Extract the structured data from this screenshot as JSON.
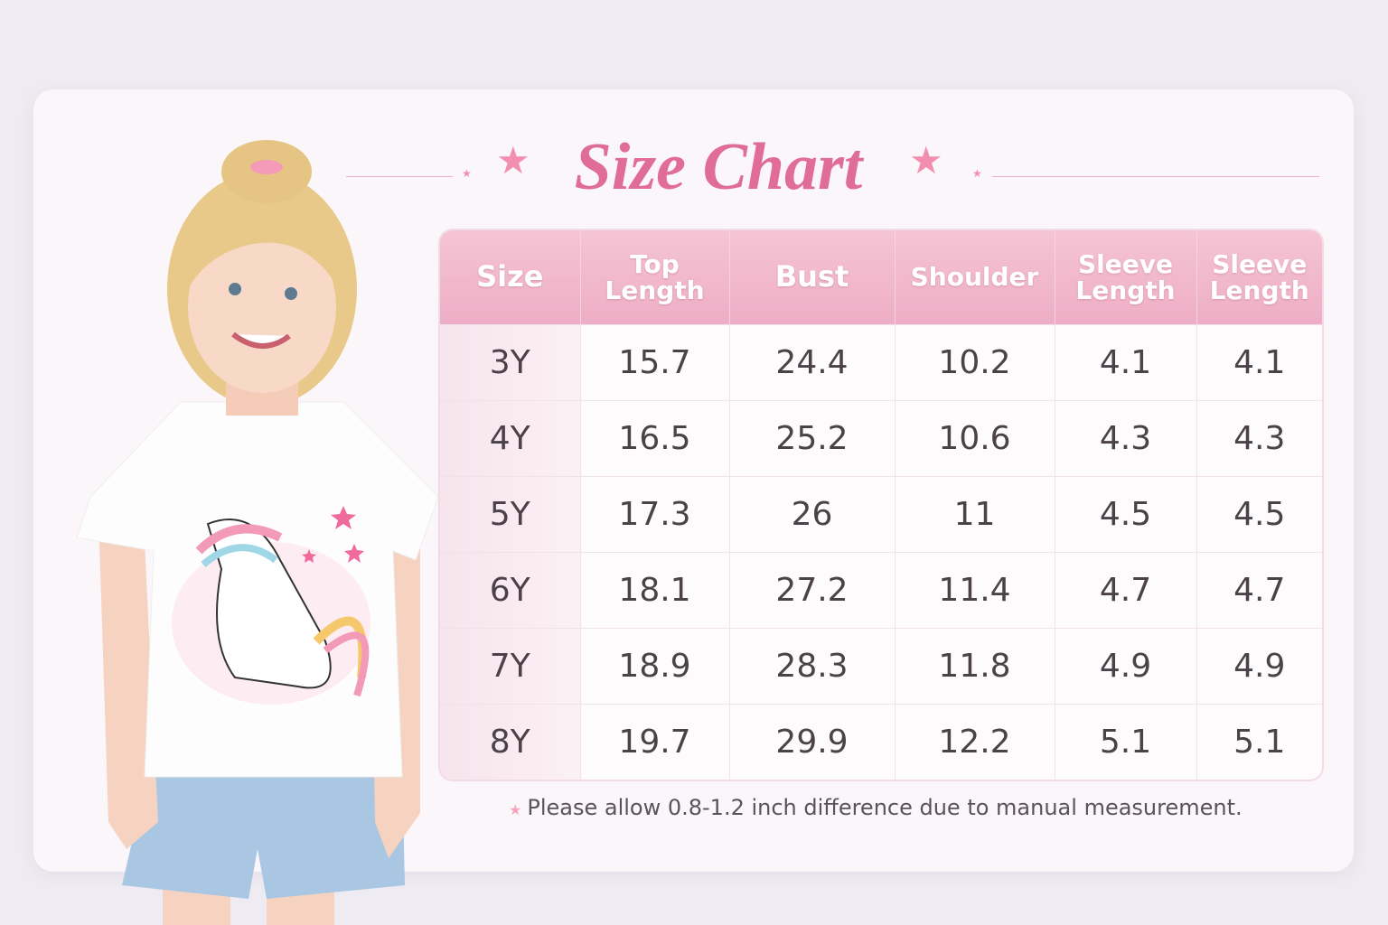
{
  "title": "Size Chart",
  "colors": {
    "accent": "#e06d98",
    "header_bg": "#f0b5c9",
    "card_bg": "#fbf6f9"
  },
  "table": {
    "headers": [
      "Size",
      "Top Length",
      "Bust",
      "Shoulder",
      "Sleeve Length",
      "Sleeve Length"
    ],
    "rows": [
      [
        "3Y",
        "15.7",
        "24.4",
        "10.2",
        "4.1",
        "4.1"
      ],
      [
        "4Y",
        "16.5",
        "25.2",
        "10.6",
        "4.3",
        "4.3"
      ],
      [
        "5Y",
        "17.3",
        "26",
        "11",
        "4.5",
        "4.5"
      ],
      [
        "6Y",
        "18.1",
        "27.2",
        "11.4",
        "4.7",
        "4.7"
      ],
      [
        "7Y",
        "18.9",
        "28.3",
        "11.8",
        "4.9",
        "4.9"
      ],
      [
        "8Y",
        "19.7",
        "29.9",
        "12.2",
        "5.1",
        "5.1"
      ]
    ]
  },
  "note": "Please allow 0.8-1.2 inch difference due to manual measurement.",
  "image": {
    "description_icon": "girl-in-unicorn-tshirt-photo"
  }
}
